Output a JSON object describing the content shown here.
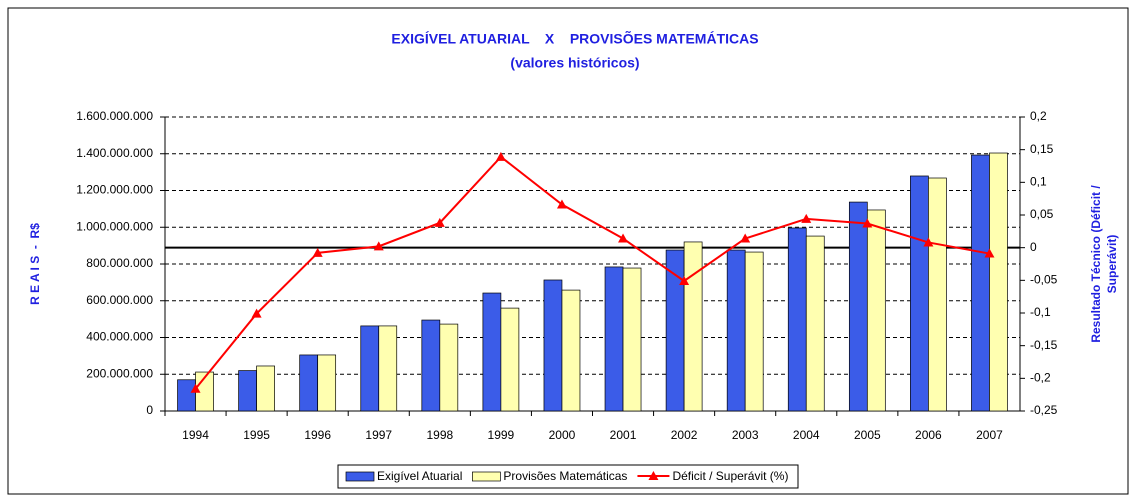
{
  "chart_data": {
    "type": "bar_line",
    "title": "EXIGÍVEL ATUARIAL    X    PROVISÕES MATEMÁTICAS",
    "subtitle": "(valores históricos)",
    "ylabel": "R E A I S  -  R$",
    "y2label": [
      "Resultado Técnico (Déficit /",
      "Superávit)"
    ],
    "categories": [
      "1994",
      "1995",
      "1996",
      "1997",
      "1998",
      "1999",
      "2000",
      "2001",
      "2002",
      "2003",
      "2004",
      "2005",
      "2006",
      "2007"
    ],
    "series": [
      {
        "name": "Exigível Atuarial",
        "color": "#3b5ce8",
        "kind": "bar",
        "values": [
          170000000,
          220000000,
          305000000,
          463000000,
          495000000,
          642000000,
          713000000,
          784000000,
          876000000,
          876000000,
          996000000,
          1137000000,
          1279000000,
          1393000000
        ]
      },
      {
        "name": "Provisões Matemáticas",
        "color": "#ffffb0",
        "kind": "bar",
        "values": [
          212000000,
          245000000,
          305000000,
          463000000,
          473000000,
          560000000,
          658000000,
          778000000,
          920000000,
          865000000,
          952000000,
          1094000000,
          1268000000,
          1404000000
        ]
      },
      {
        "name": "Déficit / Superávit (%)",
        "color": "#ff0000",
        "kind": "line",
        "axis": "y2",
        "values": [
          -0.216,
          -0.101,
          -0.008,
          0.002,
          0.038,
          0.139,
          0.066,
          0.014,
          -0.051,
          0.014,
          0.044,
          0.037,
          0.008,
          -0.009
        ]
      }
    ],
    "ylim": [
      0,
      1600000000
    ],
    "yticks": [
      0,
      {
        "value": 200000000,
        "label": "200.000.000"
      },
      {
        "value": 400000000,
        "label": "400.000.000"
      },
      {
        "value": 600000000,
        "label": "600.000.000"
      },
      {
        "value": 800000000,
        "label": "800.000.000"
      },
      {
        "value": 1000000000,
        "label": "1.000.000.000"
      },
      {
        "value": 1200000000,
        "label": "1.200.000.000"
      },
      {
        "value": 1400000000,
        "label": "1.400.000.000"
      },
      {
        "value": 1600000000,
        "label": "1.600.000.000"
      }
    ],
    "y2lim": [
      -0.25,
      0.2
    ],
    "y2ticks": [
      {
        "value": -0.25,
        "label": "-0,25"
      },
      {
        "value": -0.2,
        "label": "-0,2"
      },
      {
        "value": -0.15,
        "label": "-0,15"
      },
      {
        "value": -0.1,
        "label": "-0,1"
      },
      {
        "value": -0.05,
        "label": "-0,05"
      },
      0,
      {
        "value": 0.05,
        "label": "0,05"
      },
      {
        "value": 0.1,
        "label": "0,1"
      },
      {
        "value": 0.15,
        "label": "0,15"
      },
      {
        "value": 0.2,
        "label": "0,2"
      }
    ],
    "grid": true,
    "legend": "bottom"
  }
}
